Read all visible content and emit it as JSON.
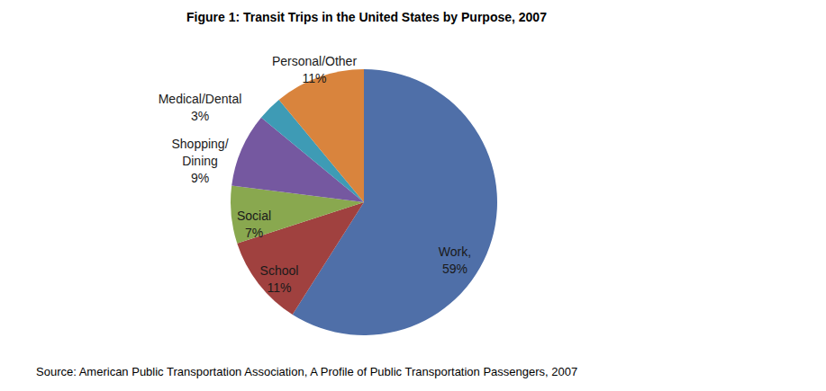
{
  "chart_data": {
    "type": "pie",
    "title": "Figure 1: Transit Trips in the United States by Purpose, 2007",
    "categories": [
      "Work,",
      "School",
      "Social",
      "Shopping/\nDining",
      "Medical/Dental",
      "Personal/Other"
    ],
    "values": [
      59,
      11,
      7,
      9,
      3,
      11
    ],
    "value_labels": [
      "59%",
      "11%",
      "7%",
      "9%",
      "3%",
      "11%"
    ],
    "colors": [
      "#4f6fa8",
      "#a0413f",
      "#89a84f",
      "#7558a0",
      "#3e9bb5",
      "#d9843d"
    ],
    "data_labels": true,
    "source": "Source: American Public Transportation Association, A Profile of Public Transportation Passengers, 2007"
  }
}
